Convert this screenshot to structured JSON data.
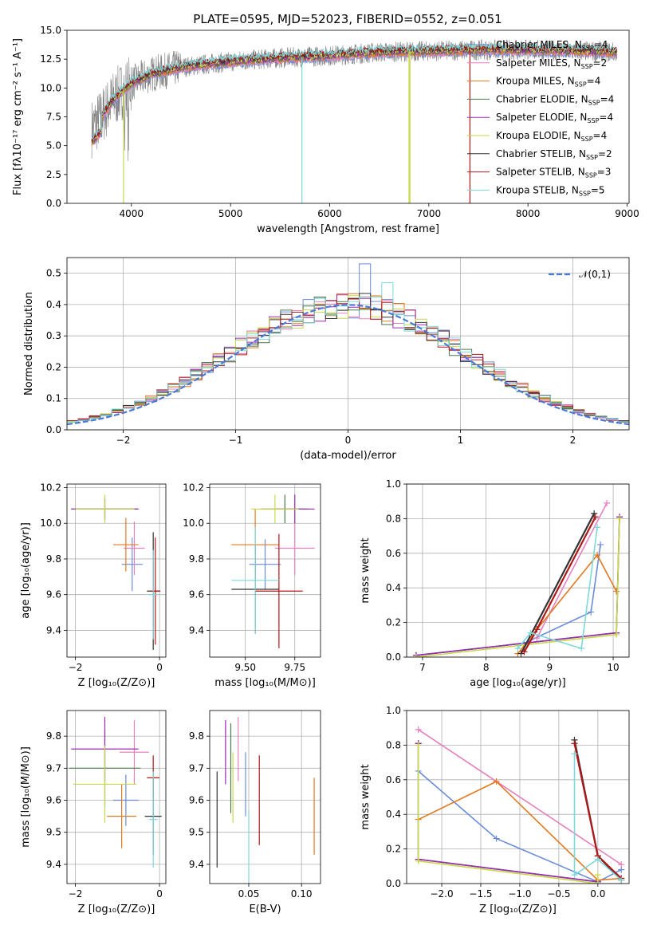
{
  "title": "PLATE=0595, MJD=52023, FIBERID=0552, z=0.051",
  "models": [
    {
      "name": "Chabrier MILES",
      "nssp": "4",
      "color": "#6a8cd8"
    },
    {
      "name": "Salpeter MILES",
      "nssp": "2",
      "color": "#e87fbf"
    },
    {
      "name": "Kroupa MILES",
      "nssp": "4",
      "color": "#e07a20"
    },
    {
      "name": "Chabrier ELODIE",
      "nssp": "4",
      "color": "#4a7a4a"
    },
    {
      "name": "Salpeter ELODIE",
      "nssp": "4",
      "color": "#9a2ab0"
    },
    {
      "name": "Kroupa ELODIE",
      "nssp": "4",
      "color": "#c8d84a"
    },
    {
      "name": "Chabrier STELIB",
      "nssp": "2",
      "color": "#333333"
    },
    {
      "name": "Salpeter STELIB",
      "nssp": "3",
      "color": "#b01818"
    },
    {
      "name": "Kroupa STELIB",
      "nssp": "5",
      "color": "#7ed8d8"
    }
  ],
  "chart_data": [
    {
      "id": "spectrum",
      "type": "line",
      "xlabel": "wavelength [Angstrom, rest frame]",
      "ylabel": "Flux [fλ10⁻¹⁷ erg cm⁻² s⁻¹ A⁻¹]",
      "xlim": [
        3350,
        9020
      ],
      "ylim": [
        0,
        15
      ],
      "xticks": [
        4000,
        5000,
        6000,
        7000,
        8000,
        9000
      ],
      "yticks": [
        0.0,
        2.5,
        5.0,
        7.5,
        10.0,
        12.5,
        15.0
      ],
      "continuum": {
        "x": [
          3600,
          3700,
          3800,
          3900,
          4000,
          4200,
          4500,
          5000,
          5500,
          6000,
          6500,
          7000,
          7500,
          8000,
          8500,
          8900
        ],
        "y": [
          6.5,
          7.5,
          8.8,
          9.7,
          10.4,
          11.2,
          11.8,
          12.3,
          12.6,
          12.8,
          13.1,
          13.2,
          13.3,
          13.3,
          13.2,
          13.1
        ]
      },
      "dips": [
        {
          "x": 3920,
          "model": "Kroupa ELODIE"
        },
        {
          "x": 5720,
          "model": "Kroupa STELIB"
        },
        {
          "x": 6810,
          "model": "Kroupa ELODIE"
        },
        {
          "x": 6800,
          "model": "Kroupa ELODIE"
        },
        {
          "x": 7415,
          "model": "Salpeter STELIB"
        }
      ],
      "grid": false,
      "legend": "right"
    },
    {
      "id": "residuals",
      "type": "histogram",
      "xlabel": "(data-model)/error",
      "ylabel": "Normed distribution",
      "xlim": [
        -2.5,
        2.5
      ],
      "ylim": [
        0,
        0.55
      ],
      "xticks": [
        -2,
        -1,
        0,
        1,
        2
      ],
      "yticks": [
        0.0,
        0.1,
        0.2,
        0.3,
        0.4,
        0.5
      ],
      "bin_width": 0.1,
      "reference": {
        "label": "𝒩(0,1)",
        "mean": 0,
        "sigma": 1
      },
      "grid": true,
      "legend": "top-right"
    },
    {
      "id": "age_vs_Z",
      "type": "scatter",
      "xlabel": "Z [log₁₀(Z/Z⊙)]",
      "ylabel": "age  [log₁₀(age/yr)]",
      "xlim": [
        -2.2,
        0.15
      ],
      "ylim": [
        9.25,
        10.22
      ],
      "xticks": [
        -2,
        0
      ],
      "yticks": [
        9.4,
        9.6,
        9.8,
        10.0,
        10.2
      ],
      "points": [
        {
          "model": "Chabrier MILES",
          "x": -0.65,
          "y": 9.77,
          "xerr": 0.25,
          "yerr": 0.15
        },
        {
          "model": "Salpeter MILES",
          "x": -0.6,
          "y": 9.86,
          "xerr": 0.25,
          "yerr": 0.15
        },
        {
          "model": "Kroupa MILES",
          "x": -0.8,
          "y": 9.88,
          "xerr": 0.3,
          "yerr": 0.15
        },
        {
          "model": "Chabrier ELODIE",
          "x": -1.3,
          "y": 10.08,
          "xerr": 0.8,
          "yerr": 0.06
        },
        {
          "model": "Salpeter ELODIE",
          "x": -1.3,
          "y": 10.08,
          "xerr": 0.8,
          "yerr": 0.06
        },
        {
          "model": "Kroupa ELODIE",
          "x": -1.3,
          "y": 10.08,
          "xerr": 0.7,
          "yerr": 0.08
        },
        {
          "model": "Chabrier STELIB",
          "x": -0.15,
          "y": 9.62,
          "xerr": 0.15,
          "yerr": 0.33
        },
        {
          "model": "Salpeter STELIB",
          "x": -0.1,
          "y": 9.62,
          "xerr": 0.12,
          "yerr": 0.3
        },
        {
          "model": "Kroupa STELIB",
          "x": -0.15,
          "y": 9.6,
          "xerr": 0.1,
          "yerr": 0.25
        }
      ],
      "grid": true
    },
    {
      "id": "age_vs_mass",
      "type": "scatter",
      "xlabel": "mass [log₁₀(M/M⊙)]",
      "ylabel": "",
      "xlim": [
        9.32,
        9.88
      ],
      "ylim": [
        9.25,
        10.22
      ],
      "xticks": [
        9.5,
        9.75
      ],
      "yticks": [
        9.4,
        9.6,
        9.8,
        10.0,
        10.2
      ],
      "points": [
        {
          "model": "Chabrier MILES",
          "x": 9.6,
          "y": 9.77,
          "xerr": 0.08,
          "yerr": 0.14
        },
        {
          "model": "Salpeter MILES",
          "x": 9.75,
          "y": 9.86,
          "xerr": 0.1,
          "yerr": 0.15
        },
        {
          "model": "Kroupa MILES",
          "x": 9.55,
          "y": 9.88,
          "xerr": 0.12,
          "yerr": 0.2
        },
        {
          "model": "Chabrier ELODIE",
          "x": 9.7,
          "y": 10.08,
          "xerr": 0.12,
          "yerr": 0.08
        },
        {
          "model": "Salpeter ELODIE",
          "x": 9.75,
          "y": 10.08,
          "xerr": 0.1,
          "yerr": 0.08
        },
        {
          "model": "Kroupa ELODIE",
          "x": 9.65,
          "y": 10.08,
          "xerr": 0.12,
          "yerr": 0.08
        },
        {
          "model": "Chabrier STELIB",
          "x": 9.55,
          "y": 9.63,
          "xerr": 0.12,
          "yerr": 0.25
        },
        {
          "model": "Salpeter STELIB",
          "x": 9.67,
          "y": 9.62,
          "xerr": 0.12,
          "yerr": 0.32
        },
        {
          "model": "Kroupa STELIB",
          "x": 9.55,
          "y": 9.68,
          "xerr": 0.12,
          "yerr": 0.3
        }
      ],
      "grid": true
    },
    {
      "id": "weight_vs_age",
      "type": "line",
      "xlabel": "age  [log₁₀(age/yr)]",
      "ylabel": "mass weight",
      "xlim": [
        6.75,
        10.25
      ],
      "ylim": [
        0,
        1
      ],
      "xticks": [
        7,
        8,
        9,
        10
      ],
      "yticks": [
        0.0,
        0.2,
        0.4,
        0.6,
        0.8,
        1.0
      ],
      "series": [
        {
          "model": "Chabrier MILES",
          "x": [
            6.9,
            8.6,
            9.65,
            9.8
          ],
          "y": [
            0.01,
            0.08,
            0.26,
            0.65
          ]
        },
        {
          "model": "Salpeter MILES",
          "x": [
            8.8,
            9.9
          ],
          "y": [
            0.11,
            0.89
          ]
        },
        {
          "model": "Kroupa MILES",
          "x": [
            8.5,
            8.8,
            9.75,
            10.05
          ],
          "y": [
            0.02,
            0.16,
            0.59,
            0.38
          ]
        },
        {
          "model": "Chabrier ELODIE",
          "x": [
            6.9,
            10.05,
            10.1
          ],
          "y": [
            0.01,
            0.14,
            0.81
          ]
        },
        {
          "model": "Salpeter ELODIE",
          "x": [
            6.9,
            10.05,
            10.1
          ],
          "y": [
            0.01,
            0.14,
            0.81
          ]
        },
        {
          "model": "Kroupa ELODIE",
          "x": [
            6.9,
            10.05,
            10.1
          ],
          "y": [
            0.0,
            0.13,
            0.8
          ]
        },
        {
          "model": "Chabrier STELIB",
          "x": [
            8.55,
            9.7
          ],
          "y": [
            0.02,
            0.83
          ]
        },
        {
          "model": "Salpeter STELIB",
          "x": [
            8.6,
            8.8,
            9.72
          ],
          "y": [
            0.03,
            0.16,
            0.81
          ]
        },
        {
          "model": "Kroupa STELIB",
          "x": [
            8.5,
            8.7,
            9.5,
            9.75
          ],
          "y": [
            0.05,
            0.14,
            0.05,
            0.75
          ]
        }
      ],
      "grid": true
    },
    {
      "id": "mass_vs_Z",
      "type": "scatter",
      "xlabel": "Z [log₁₀(Z/Z⊙)]",
      "ylabel": "mass [log₁₀(M/M⊙)]",
      "xlim": [
        -2.2,
        0.15
      ],
      "ylim": [
        9.34,
        9.88
      ],
      "xticks": [
        -2,
        0
      ],
      "yticks": [
        9.4,
        9.5,
        9.6,
        9.7,
        9.8
      ],
      "points": [
        {
          "model": "Chabrier MILES",
          "x": -0.8,
          "y": 9.6,
          "xerr": 0.3,
          "yerr": 0.08
        },
        {
          "model": "Salpeter MILES",
          "x": -0.6,
          "y": 9.75,
          "xerr": 0.35,
          "yerr": 0.1
        },
        {
          "model": "Kroupa MILES",
          "x": -0.9,
          "y": 9.55,
          "xerr": 0.35,
          "yerr": 0.1
        },
        {
          "model": "Chabrier ELODIE",
          "x": -1.3,
          "y": 9.7,
          "xerr": 0.85,
          "yerr": 0.12
        },
        {
          "model": "Salpeter ELODIE",
          "x": -1.3,
          "y": 9.76,
          "xerr": 0.8,
          "yerr": 0.1
        },
        {
          "model": "Kroupa ELODIE",
          "x": -1.3,
          "y": 9.65,
          "xerr": 0.75,
          "yerr": 0.12
        },
        {
          "model": "Chabrier STELIB",
          "x": -0.15,
          "y": 9.55,
          "xerr": 0.2,
          "yerr": 0.12
        },
        {
          "model": "Salpeter STELIB",
          "x": -0.15,
          "y": 9.67,
          "xerr": 0.15,
          "yerr": 0.07
        },
        {
          "model": "Kroupa STELIB",
          "x": -0.15,
          "y": 9.54,
          "xerr": 0.1,
          "yerr": 0.15
        }
      ],
      "grid": true
    },
    {
      "id": "mass_vs_ebv",
      "type": "scatter",
      "xlabel": "E(B-V)",
      "ylabel": "",
      "xlim": [
        0.013,
        0.118
      ],
      "ylim": [
        9.34,
        9.88
      ],
      "xticks": [
        0.05,
        0.1
      ],
      "yticks": [
        9.4,
        9.5,
        9.6,
        9.7,
        9.8
      ],
      "points": [
        {
          "model": "Chabrier MILES",
          "x": 0.047,
          "y": 9.65,
          "xerr": 0,
          "yerr": 0.1
        },
        {
          "model": "Salpeter MILES",
          "x": 0.04,
          "y": 9.76,
          "xerr": 0,
          "yerr": 0.1
        },
        {
          "model": "Kroupa MILES",
          "x": 0.112,
          "y": 9.55,
          "xerr": 0,
          "yerr": 0.12
        },
        {
          "model": "Chabrier ELODIE",
          "x": 0.033,
          "y": 9.7,
          "xerr": 0,
          "yerr": 0.14
        },
        {
          "model": "Salpeter ELODIE",
          "x": 0.028,
          "y": 9.75,
          "xerr": 0,
          "yerr": 0.1
        },
        {
          "model": "Kroupa ELODIE",
          "x": 0.035,
          "y": 9.64,
          "xerr": 0,
          "yerr": 0.11
        },
        {
          "model": "Chabrier STELIB",
          "x": 0.02,
          "y": 9.54,
          "xerr": 0,
          "yerr": 0.15
        },
        {
          "model": "Salpeter STELIB",
          "x": 0.06,
          "y": 9.6,
          "xerr": 0,
          "yerr": 0.14
        },
        {
          "model": "Kroupa STELIB",
          "x": 0.05,
          "y": 9.45,
          "xerr": 0,
          "yerr": 0.12
        }
      ],
      "grid": true
    },
    {
      "id": "weight_vs_Z",
      "type": "line",
      "xlabel": "Z [log₁₀(Z/Z⊙)]",
      "ylabel": "mass weight",
      "xlim": [
        -2.45,
        0.4
      ],
      "ylim": [
        0,
        1
      ],
      "xticks": [
        -2.0,
        -1.5,
        -1.0,
        -0.5,
        0.0
      ],
      "yticks": [
        0.0,
        0.2,
        0.4,
        0.6,
        0.8,
        1.0
      ],
      "series": [
        {
          "model": "Chabrier MILES",
          "x": [
            -2.3,
            -1.3,
            0.0,
            0.3
          ],
          "y": [
            0.65,
            0.26,
            0.01,
            0.08
          ]
        },
        {
          "model": "Salpeter MILES",
          "x": [
            -2.3,
            0.3
          ],
          "y": [
            0.89,
            0.11
          ]
        },
        {
          "model": "Kroupa MILES",
          "x": [
            -2.3,
            -1.3,
            0.0,
            0.3
          ],
          "y": [
            0.37,
            0.59,
            0.02,
            0.03
          ]
        },
        {
          "model": "Chabrier ELODIE",
          "x": [
            -2.3,
            -2.3,
            0.0
          ],
          "y": [
            0.81,
            0.14,
            0.01
          ]
        },
        {
          "model": "Salpeter ELODIE",
          "x": [
            -2.3,
            -2.3,
            0.0
          ],
          "y": [
            0.81,
            0.14,
            0.01
          ]
        },
        {
          "model": "Kroupa ELODIE",
          "x": [
            -2.3,
            -2.3,
            0.0,
            0.0
          ],
          "y": [
            0.8,
            0.13,
            0.0,
            0.05
          ]
        },
        {
          "model": "Chabrier STELIB",
          "x": [
            -0.3,
            0.0,
            0.3
          ],
          "y": [
            0.83,
            0.16,
            0.02
          ]
        },
        {
          "model": "Salpeter STELIB",
          "x": [
            -0.3,
            0.0,
            0.3
          ],
          "y": [
            0.81,
            0.16,
            0.03
          ]
        },
        {
          "model": "Kroupa STELIB",
          "x": [
            -0.3,
            -0.3,
            0.0,
            0.3
          ],
          "y": [
            0.75,
            0.05,
            0.14,
            0.02
          ]
        }
      ],
      "grid": true
    }
  ]
}
